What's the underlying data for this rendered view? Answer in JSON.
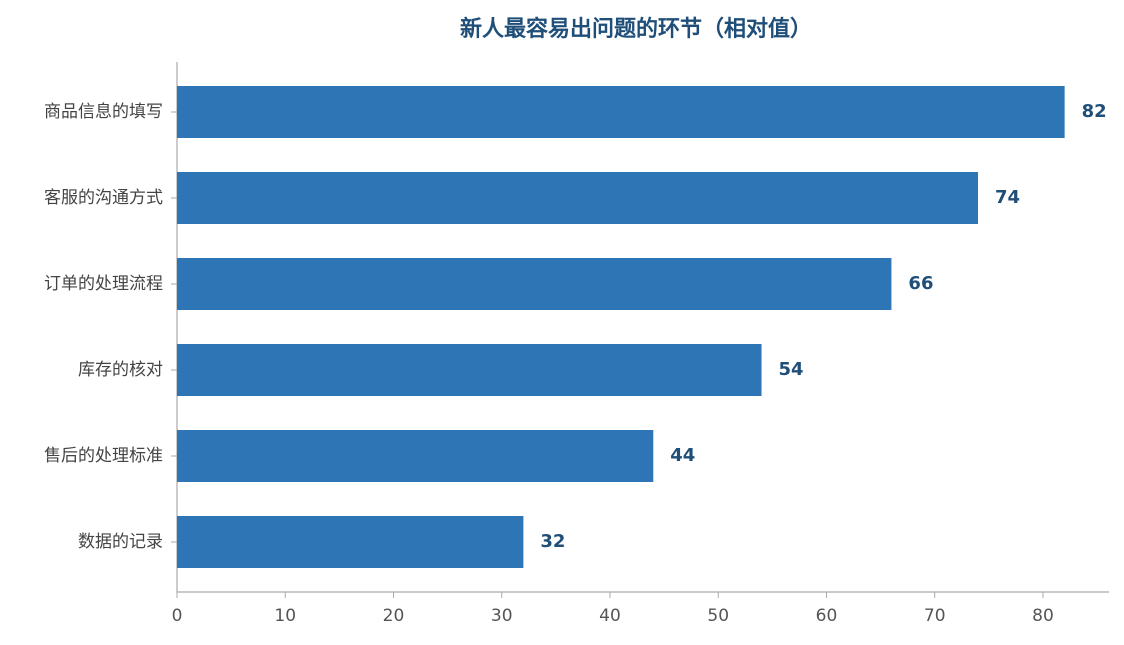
{
  "chart_data": {
    "type": "barh",
    "title": "新人最容易出问题的环节（相对值）",
    "categories": [
      "商品信息的填写",
      "客服的沟通方式",
      "订单的处理流程",
      "库存的核对",
      "售后的处理标准",
      "数据的记录"
    ],
    "values": [
      82,
      74,
      66,
      54,
      44,
      32
    ],
    "color": "#2e75b6",
    "xlim": [
      0,
      86.1
    ],
    "xticks": [
      0,
      10,
      20,
      30,
      40,
      50,
      60,
      70,
      80
    ]
  }
}
